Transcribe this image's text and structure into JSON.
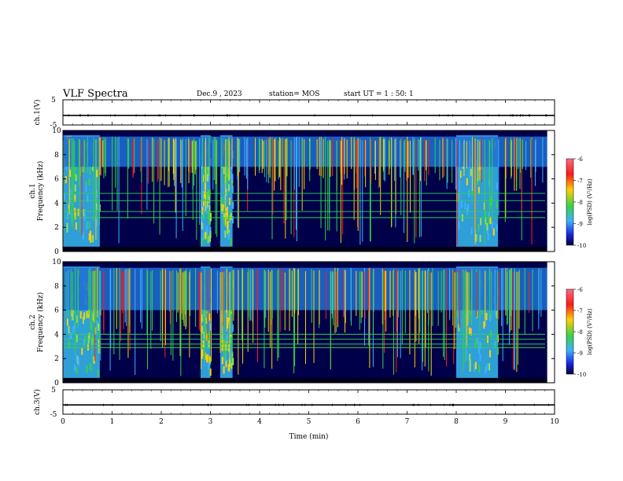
{
  "header": {
    "title": "VLF Spectra",
    "date": "Dec.9 , 2023",
    "station": "station= MOS",
    "start": "start UT = 1 : 50: 1"
  },
  "colorbar": {
    "label": "log(PSD) (V²/Hz)",
    "ticks": [
      "-6",
      "-7",
      "-8",
      "-9",
      "-10"
    ],
    "colors": [
      "#ff6a80",
      "#ff1a1a",
      "#ffd000",
      "#37d14a",
      "#3db2ff",
      "#1a22e0",
      "#00003a"
    ]
  },
  "chart_data": [
    {
      "type": "line",
      "name": "ch.1",
      "ylabel": "ch.1(V)",
      "ylim": [
        -5,
        5
      ],
      "yticks": [
        "5",
        "-5"
      ],
      "x": [
        0,
        10
      ],
      "values": [
        -1.2,
        -1.2
      ]
    },
    {
      "type": "heatmap",
      "name": "ch.1",
      "ylabel": "ch.1\nFrequency (kHz)",
      "ylim": [
        0,
        10
      ],
      "yticks": [
        "10",
        "8",
        "6",
        "4",
        "2",
        "0"
      ],
      "xlim": [
        0,
        10
      ],
      "broadband_segments_min": [
        [
          0.0,
          0.75
        ],
        [
          2.8,
          3.0
        ],
        [
          3.2,
          3.45
        ],
        [
          8.0,
          8.85
        ]
      ],
      "bright_band_khz": [
        7.0,
        9.5
      ],
      "line_frequencies_khz": [
        2.8,
        3.3,
        4.2,
        4.8
      ]
    },
    {
      "type": "heatmap",
      "name": "ch.2",
      "ylabel": "ch.2\nFrequency (kHz)",
      "ylim": [
        0,
        10
      ],
      "yticks": [
        "10",
        "8",
        "6",
        "4",
        "2",
        "0"
      ],
      "xlim": [
        0,
        10
      ],
      "broadband_segments_min": [
        [
          0.0,
          0.75
        ],
        [
          2.8,
          3.0
        ],
        [
          3.2,
          3.45
        ],
        [
          8.0,
          8.85
        ]
      ],
      "bright_band_khz": [
        6.0,
        9.5
      ],
      "line_frequencies_khz": [
        2.9,
        3.2,
        3.6,
        4.0
      ]
    },
    {
      "type": "line",
      "name": "ch.3",
      "ylabel": "ch.3(V)",
      "ylim": [
        -5,
        5
      ],
      "yticks": [
        "5",
        "-5"
      ],
      "x": [
        0,
        10
      ],
      "values": [
        -1.2,
        -1.2
      ]
    }
  ],
  "xaxis": {
    "label": "Time (min)",
    "ticks": [
      "0",
      "1",
      "2",
      "3",
      "4",
      "5",
      "6",
      "7",
      "8",
      "9",
      "10"
    ]
  }
}
